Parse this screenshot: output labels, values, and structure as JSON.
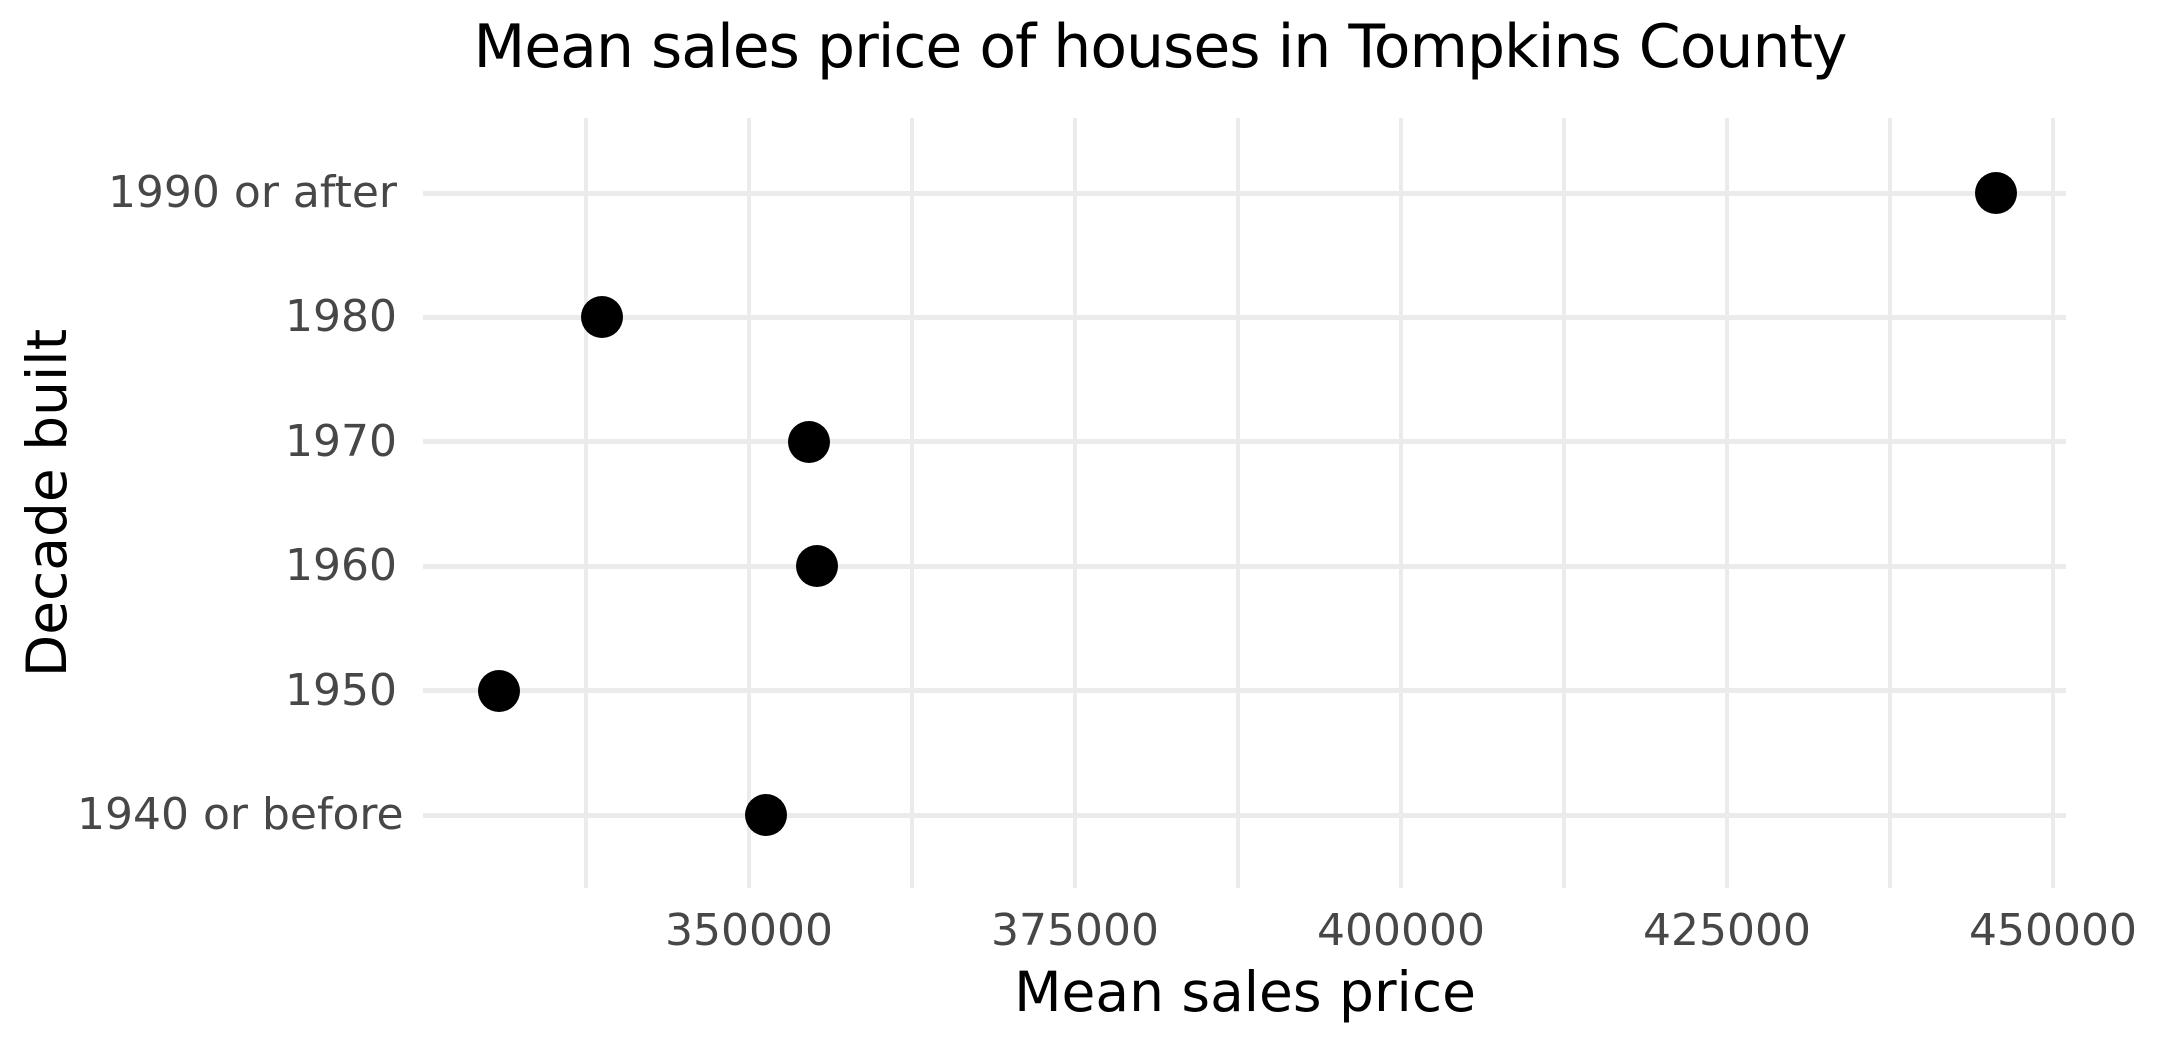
{
  "chart_data": {
    "type": "scatter",
    "title": "Mean sales price of houses in Tompkins County",
    "xlabel": "Mean sales price",
    "ylabel": "Decade built",
    "categories": [
      "1990 or after",
      "1980",
      "1970",
      "1960",
      "1950",
      "1940 or before"
    ],
    "values": [
      445600,
      338700,
      354600,
      355200,
      330800,
      351300
    ],
    "x_ticks": [
      350000,
      375000,
      400000,
      425000,
      450000
    ],
    "x_tick_labels": [
      "350000",
      "375000",
      "400000",
      "425000",
      "450000"
    ],
    "x_minor_ticks": [
      337500,
      362500,
      387500,
      412500,
      437500
    ],
    "xlim": [
      325000,
      451000
    ],
    "grid": true,
    "legend": "none",
    "colors": {
      "point": "#000000",
      "grid": "#EBEBEB",
      "tick_label": "#474747",
      "title": "#000000",
      "background": "#FFFFFF"
    }
  }
}
